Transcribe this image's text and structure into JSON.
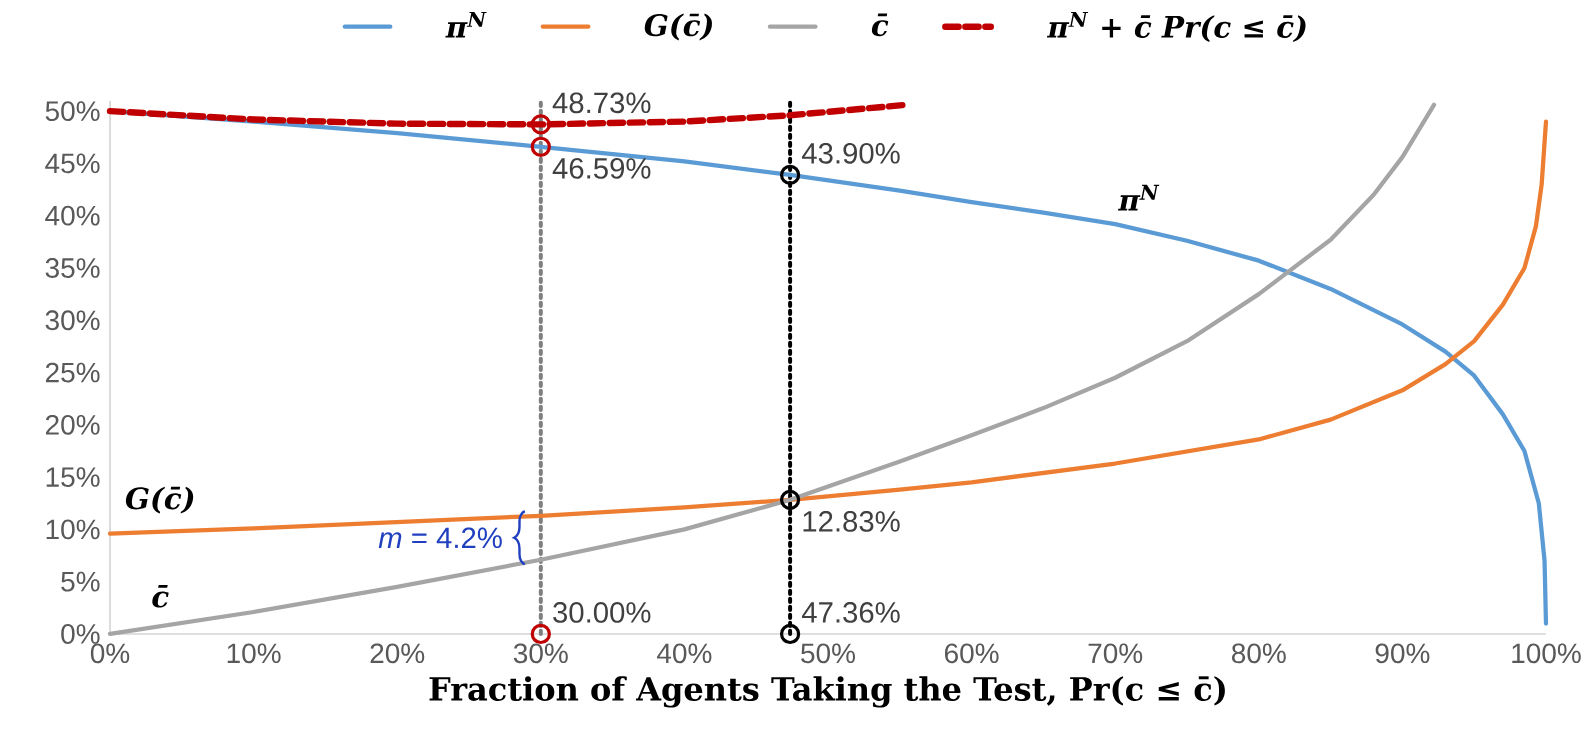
{
  "chart_data": {
    "type": "line",
    "xlabel": "Fraction of Agents Taking the Test, Pr(c ≤ c̄)",
    "xlim": [
      0,
      100
    ],
    "xticks": [
      {
        "value": 0,
        "label": "0%"
      },
      {
        "value": 10,
        "label": "10%"
      },
      {
        "value": 20,
        "label": "20%"
      },
      {
        "value": 30,
        "label": "30%"
      },
      {
        "value": 40,
        "label": "40%"
      },
      {
        "value": 50,
        "label": "50%"
      },
      {
        "value": 60,
        "label": "60%"
      },
      {
        "value": 70,
        "label": "70%"
      },
      {
        "value": 80,
        "label": "80%"
      },
      {
        "value": 90,
        "label": "90%"
      },
      {
        "value": 100,
        "label": "100%"
      }
    ],
    "ylim": [
      0,
      51
    ],
    "yticks": [
      {
        "value": 0,
        "label": "0%"
      },
      {
        "value": 5,
        "label": "5%"
      },
      {
        "value": 10,
        "label": "10%"
      },
      {
        "value": 15,
        "label": "15%"
      },
      {
        "value": 20,
        "label": "20%"
      },
      {
        "value": 25,
        "label": "25%"
      },
      {
        "value": 30,
        "label": "30%"
      },
      {
        "value": 35,
        "label": "35%"
      },
      {
        "value": 40,
        "label": "40%"
      },
      {
        "value": 45,
        "label": "45%"
      },
      {
        "value": 50,
        "label": "50%"
      }
    ],
    "legend": "top",
    "series": [
      {
        "name": "π$^{N}$",
        "color": "#5b9bd5",
        "line_style": "solid",
        "x": [
          0,
          10,
          20,
          30,
          40,
          47.36,
          55,
          60,
          65,
          70,
          75,
          80,
          85,
          90,
          93,
          95,
          97,
          98.5,
          99.5,
          99.9,
          100
        ],
        "values": [
          50,
          49,
          47.9,
          46.59,
          45.2,
          43.9,
          42.4,
          41.3,
          40.3,
          39.2,
          37.6,
          35.7,
          33,
          29.6,
          27,
          24.7,
          21,
          17.5,
          12.5,
          7,
          1
        ]
      },
      {
        "name": "G(c̄)",
        "color": "#ed7d31",
        "line_style": "solid",
        "x": [
          0,
          10,
          20,
          30,
          40,
          47.36,
          55,
          60,
          70,
          80,
          85,
          90,
          93,
          95,
          97,
          98.5,
          99.3,
          99.7,
          100
        ],
        "values": [
          9.6,
          10.1,
          10.7,
          11.3,
          12.1,
          12.83,
          13.8,
          14.5,
          16.3,
          18.6,
          20.5,
          23.3,
          25.8,
          28,
          31.5,
          35,
          39,
          43,
          49
        ]
      },
      {
        "name": "c̄",
        "color": "#a5a5a5",
        "line_style": "solid",
        "x": [
          0,
          10,
          20,
          30,
          40,
          47.36,
          55,
          60,
          65,
          70,
          75,
          80,
          85,
          88,
          90,
          92.2
        ],
        "values": [
          0,
          2.1,
          4.5,
          7.1,
          10,
          12.83,
          16.5,
          19,
          21.6,
          24.5,
          28,
          32.5,
          37.7,
          42,
          45.6,
          50.6
        ]
      },
      {
        "name": "π$^{N}$ + c̄ Pr(c ≤ c̄)",
        "color": "#c00000",
        "line_style": "dashed",
        "x": [
          0,
          10,
          20,
          30,
          40,
          47.36,
          55.4
        ],
        "values": [
          50,
          49.2,
          48.8,
          48.73,
          49,
          49.6,
          50.6
        ]
      },
      {
        "type": "scatter",
        "color": "#c00000",
        "marker": "circle",
        "x": [
          30,
          30,
          30
        ],
        "values": [
          48.73,
          46.59,
          0
        ],
        "value_labels": [
          "48.73%",
          "46.59%",
          null
        ]
      },
      {
        "type": "scatter",
        "color": "#000000",
        "marker": "circle",
        "x": [
          47.36,
          47.36,
          47.36
        ],
        "values": [
          43.9,
          12.83,
          0
        ],
        "value_labels": [
          "43.90%",
          "12.83%",
          null
        ]
      }
    ],
    "ref_lines": [
      {
        "axis": "x",
        "value": 30,
        "color": "#7f7f7f",
        "line_style": "dotted"
      },
      {
        "axis": "x",
        "value": 47.36,
        "color": "#000000",
        "line_style": "dotted"
      }
    ],
    "annotations": [
      {
        "text": "30.00%",
        "x": 30,
        "y": 0
      },
      {
        "text": "47.36%",
        "x": 47.36,
        "y": 0
      },
      "*m* = 4.2%"
    ]
  }
}
